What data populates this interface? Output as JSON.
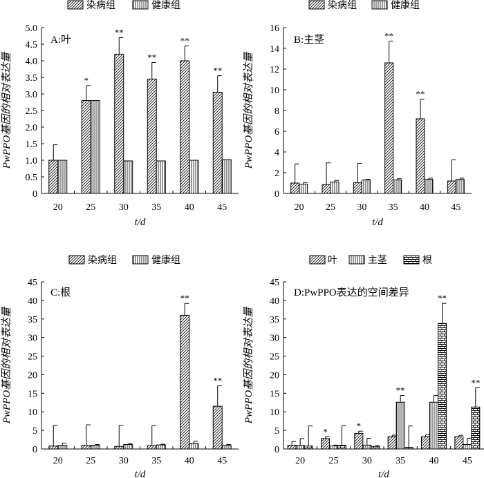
{
  "legend_ab": {
    "diseased": "染病组",
    "healthy": "健康组"
  },
  "legend_c": {
    "diseased": "染病组",
    "healthy": "健康组"
  },
  "legend_d": {
    "leaf": "叶",
    "stem": "主茎",
    "root": "根"
  },
  "chart_data": [
    {
      "type": "bar",
      "panel_label": "A:叶",
      "ylabel": "PwPPO基因的相对表达量",
      "xlabel": "t/d",
      "categories": [
        "20",
        "25",
        "30",
        "35",
        "40",
        "45"
      ],
      "ylim": [
        0,
        5
      ],
      "yticks": [
        "0",
        "0.5",
        "1.0",
        "1.5",
        "2.0",
        "2.5",
        "3.0",
        "3.5",
        "4.0",
        "4.5",
        "5.0"
      ],
      "ytick_values": [
        0,
        0.5,
        1,
        1.5,
        2,
        2.5,
        3,
        3.5,
        4,
        4.5,
        5
      ],
      "series": [
        {
          "name": "染病组",
          "pattern": "diag",
          "values": [
            1.0,
            2.8,
            4.2,
            3.45,
            4.0,
            3.05
          ],
          "errors": [
            0.47,
            0.45,
            0.5,
            0.5,
            0.45,
            0.5
          ],
          "sig": [
            "",
            "*",
            "**",
            "**",
            "**",
            "**"
          ]
        },
        {
          "name": "健康组",
          "pattern": "vert",
          "values": [
            1.0,
            2.8,
            0.98,
            0.98,
            1.0,
            1.02
          ],
          "errors": [
            0,
            0,
            0,
            0,
            0,
            0
          ],
          "sig": [
            "",
            "",
            "",
            "",
            "",
            ""
          ]
        }
      ]
    },
    {
      "type": "bar",
      "panel_label": "B:主茎",
      "ylabel": "PwPPO基因的相对表达量",
      "xlabel": "t/d",
      "categories": [
        "20",
        "25",
        "30",
        "35",
        "40",
        "45"
      ],
      "ylim": [
        0,
        16
      ],
      "yticks": [
        "0",
        "2",
        "4",
        "6",
        "8",
        "10",
        "12",
        "14",
        "16"
      ],
      "ytick_values": [
        0,
        2,
        4,
        6,
        8,
        10,
        12,
        14,
        16
      ],
      "series": [
        {
          "name": "染病组",
          "pattern": "diag",
          "values": [
            1.0,
            0.85,
            1.05,
            12.6,
            7.2,
            1.2
          ],
          "errors": [
            1.85,
            2.1,
            1.85,
            2.1,
            1.9,
            2.05
          ],
          "sig": [
            "",
            "",
            "",
            "**",
            "**",
            ""
          ]
        },
        {
          "name": "健康组",
          "pattern": "vert",
          "values": [
            0.9,
            1.1,
            1.3,
            1.3,
            1.35,
            1.35
          ],
          "errors": [
            0.15,
            0.15,
            0.05,
            0.12,
            0.12,
            0.12
          ],
          "sig": [
            "",
            "",
            "",
            "",
            "",
            ""
          ]
        }
      ]
    },
    {
      "type": "bar",
      "panel_label": "C:根",
      "ylabel": "PwPPO基因的相对表达量",
      "xlabel": "t/d",
      "categories": [
        "20",
        "25",
        "30",
        "35",
        "40",
        "45"
      ],
      "ylim": [
        0,
        45
      ],
      "yticks": [
        "0",
        "5",
        "10",
        "15",
        "20",
        "25",
        "30",
        "35",
        "40",
        "45"
      ],
      "ytick_values": [
        0,
        5,
        10,
        15,
        20,
        25,
        30,
        35,
        40,
        45
      ],
      "series": [
        {
          "name": "染病组",
          "pattern": "diag",
          "values": [
            0.8,
            1.0,
            0.7,
            0.9,
            36.0,
            11.5
          ],
          "errors": [
            5.6,
            5.5,
            5.7,
            5.4,
            3.2,
            5.5
          ],
          "sig": [
            "",
            "",
            "",
            "",
            "**",
            "**"
          ]
        },
        {
          "name": "健康组",
          "pattern": "vert",
          "values": [
            1.0,
            1.0,
            1.2,
            1.1,
            1.5,
            1.0
          ],
          "errors": [
            0.6,
            0.2,
            0.2,
            0.2,
            0.6,
            0.2
          ],
          "sig": [
            "",
            "",
            "",
            "",
            "",
            ""
          ]
        }
      ]
    },
    {
      "type": "bar",
      "panel_label": "D:PwPPO表达的空间差异",
      "ylabel": "PwPPO基因的相对表达量",
      "xlabel": "t/d",
      "categories": [
        "20",
        "25",
        "30",
        "35",
        "40",
        "45"
      ],
      "ylim": [
        0,
        45
      ],
      "yticks": [
        "0",
        "5",
        "10",
        "15",
        "20",
        "25",
        "30",
        "35",
        "40",
        "45"
      ],
      "ytick_values": [
        0,
        5,
        10,
        15,
        20,
        25,
        30,
        35,
        40,
        45
      ],
      "series": [
        {
          "name": "叶",
          "pattern": "diag",
          "values": [
            1.0,
            2.8,
            4.2,
            3.3,
            3.3,
            3.3
          ],
          "errors": [
            1.0,
            0.5,
            0.6,
            0.4,
            0.5,
            0.4
          ],
          "sig": [
            "",
            "*",
            "*",
            "",
            "",
            ""
          ]
        },
        {
          "name": "主茎",
          "pattern": "vert",
          "values": [
            1.0,
            0.85,
            1.05,
            12.6,
            12.6,
            1.2
          ],
          "errors": [
            1.8,
            0.2,
            1.8,
            1.8,
            1.8,
            1.7
          ],
          "sig": [
            "",
            "",
            "",
            "**",
            "",
            ""
          ]
        },
        {
          "name": "根",
          "pattern": "brick",
          "values": [
            0.8,
            1.0,
            0.7,
            0.4,
            33.8,
            11.3
          ],
          "errors": [
            5.4,
            5.3,
            0.2,
            5.8,
            5.4,
            5.2
          ],
          "sig": [
            "",
            "",
            "",
            "",
            "**",
            "**"
          ]
        }
      ]
    }
  ]
}
